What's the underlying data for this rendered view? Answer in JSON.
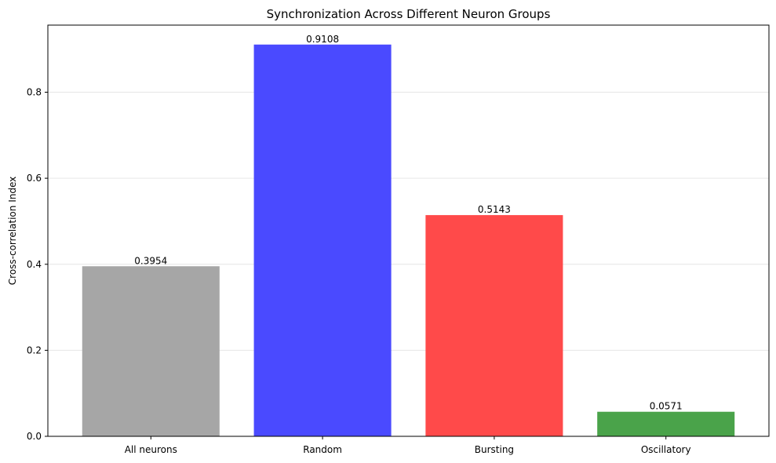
{
  "chart_data": {
    "type": "bar",
    "title": "Synchronization Across Different Neuron Groups",
    "xlabel": "",
    "ylabel": "Cross-correlation Index",
    "categories": [
      "All neurons",
      "Random",
      "Bursting",
      "Oscillatory"
    ],
    "values": [
      0.3954,
      0.9108,
      0.5143,
      0.0571
    ],
    "value_labels": [
      "0.3954",
      "0.9108",
      "0.5143",
      "0.0571"
    ],
    "colors": [
      "#a6a6a6",
      "#4a4aff",
      "#ff4a4a",
      "#4aa34a"
    ],
    "ylim": [
      0,
      0.956
    ],
    "yticks": [
      0.0,
      0.2,
      0.4,
      0.6,
      0.8
    ],
    "ytick_labels": [
      "0.0",
      "0.2",
      "0.4",
      "0.6",
      "0.8"
    ],
    "grid": "y",
    "legend": "none"
  }
}
